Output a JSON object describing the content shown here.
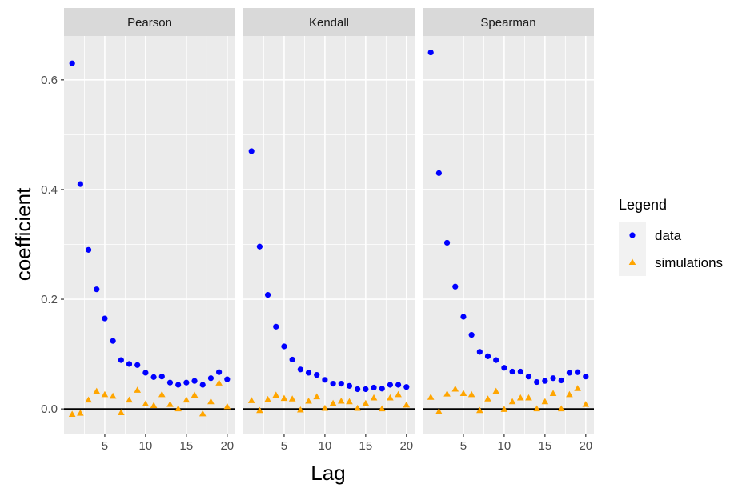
{
  "chart_data": {
    "type": "scatter",
    "xlabel": "Lag",
    "ylabel": "coefficient",
    "x": [
      1,
      2,
      3,
      4,
      5,
      6,
      7,
      8,
      9,
      10,
      11,
      12,
      13,
      14,
      15,
      16,
      17,
      18,
      19,
      20
    ],
    "xlim": [
      0,
      21
    ],
    "ylim": [
      -0.045,
      0.68
    ],
    "xticks": [
      5,
      10,
      15,
      20
    ],
    "yticks": [
      0.0,
      0.2,
      0.4,
      0.6
    ],
    "ytick_labels": [
      "0.0",
      "0.2",
      "0.4",
      "0.6"
    ],
    "reference_line_y": 0,
    "grid": true,
    "legend": {
      "title": "Legend",
      "position": "right",
      "entries": [
        {
          "name": "data",
          "color": "#0000ff",
          "shape": "circle"
        },
        {
          "name": "simulations",
          "color": "#ffa500",
          "shape": "triangle"
        }
      ]
    },
    "panels": [
      {
        "title": "Pearson",
        "series": [
          {
            "name": "data",
            "values": [
              0.63,
              0.41,
              0.29,
              0.218,
              0.165,
              0.124,
              0.089,
              0.082,
              0.08,
              0.066,
              0.058,
              0.059,
              0.048,
              0.044,
              0.048,
              0.051,
              0.044,
              0.056,
              0.067,
              0.054
            ]
          },
          {
            "name": "simulations",
            "values": [
              -0.01,
              -0.008,
              0.016,
              0.032,
              0.026,
              0.023,
              -0.007,
              0.016,
              0.034,
              0.009,
              0.006,
              0.026,
              0.008,
              0.0,
              0.016,
              0.025,
              -0.009,
              0.013,
              0.047,
              0.004
            ]
          }
        ]
      },
      {
        "title": "Kendall",
        "series": [
          {
            "name": "data",
            "values": [
              0.47,
              0.296,
              0.208,
              0.15,
              0.114,
              0.09,
              0.072,
              0.066,
              0.062,
              0.053,
              0.046,
              0.046,
              0.042,
              0.036,
              0.036,
              0.039,
              0.037,
              0.044,
              0.044,
              0.04
            ]
          },
          {
            "name": "simulations",
            "values": [
              0.015,
              -0.003,
              0.017,
              0.025,
              0.019,
              0.018,
              -0.002,
              0.014,
              0.022,
              0.001,
              0.01,
              0.014,
              0.013,
              0.001,
              0.01,
              0.02,
              0.0,
              0.02,
              0.026,
              0.007
            ]
          }
        ]
      },
      {
        "title": "Spearman",
        "series": [
          {
            "name": "data",
            "values": [
              0.65,
              0.43,
              0.303,
              0.223,
              0.168,
              0.135,
              0.104,
              0.096,
              0.089,
              0.075,
              0.068,
              0.068,
              0.059,
              0.049,
              0.051,
              0.056,
              0.052,
              0.066,
              0.067,
              0.059
            ]
          },
          {
            "name": "simulations",
            "values": [
              0.021,
              -0.005,
              0.027,
              0.036,
              0.028,
              0.026,
              -0.003,
              0.018,
              0.032,
              -0.001,
              0.013,
              0.02,
              0.02,
              0.0,
              0.013,
              0.028,
              0.0,
              0.026,
              0.037,
              0.008
            ]
          }
        ]
      }
    ]
  }
}
